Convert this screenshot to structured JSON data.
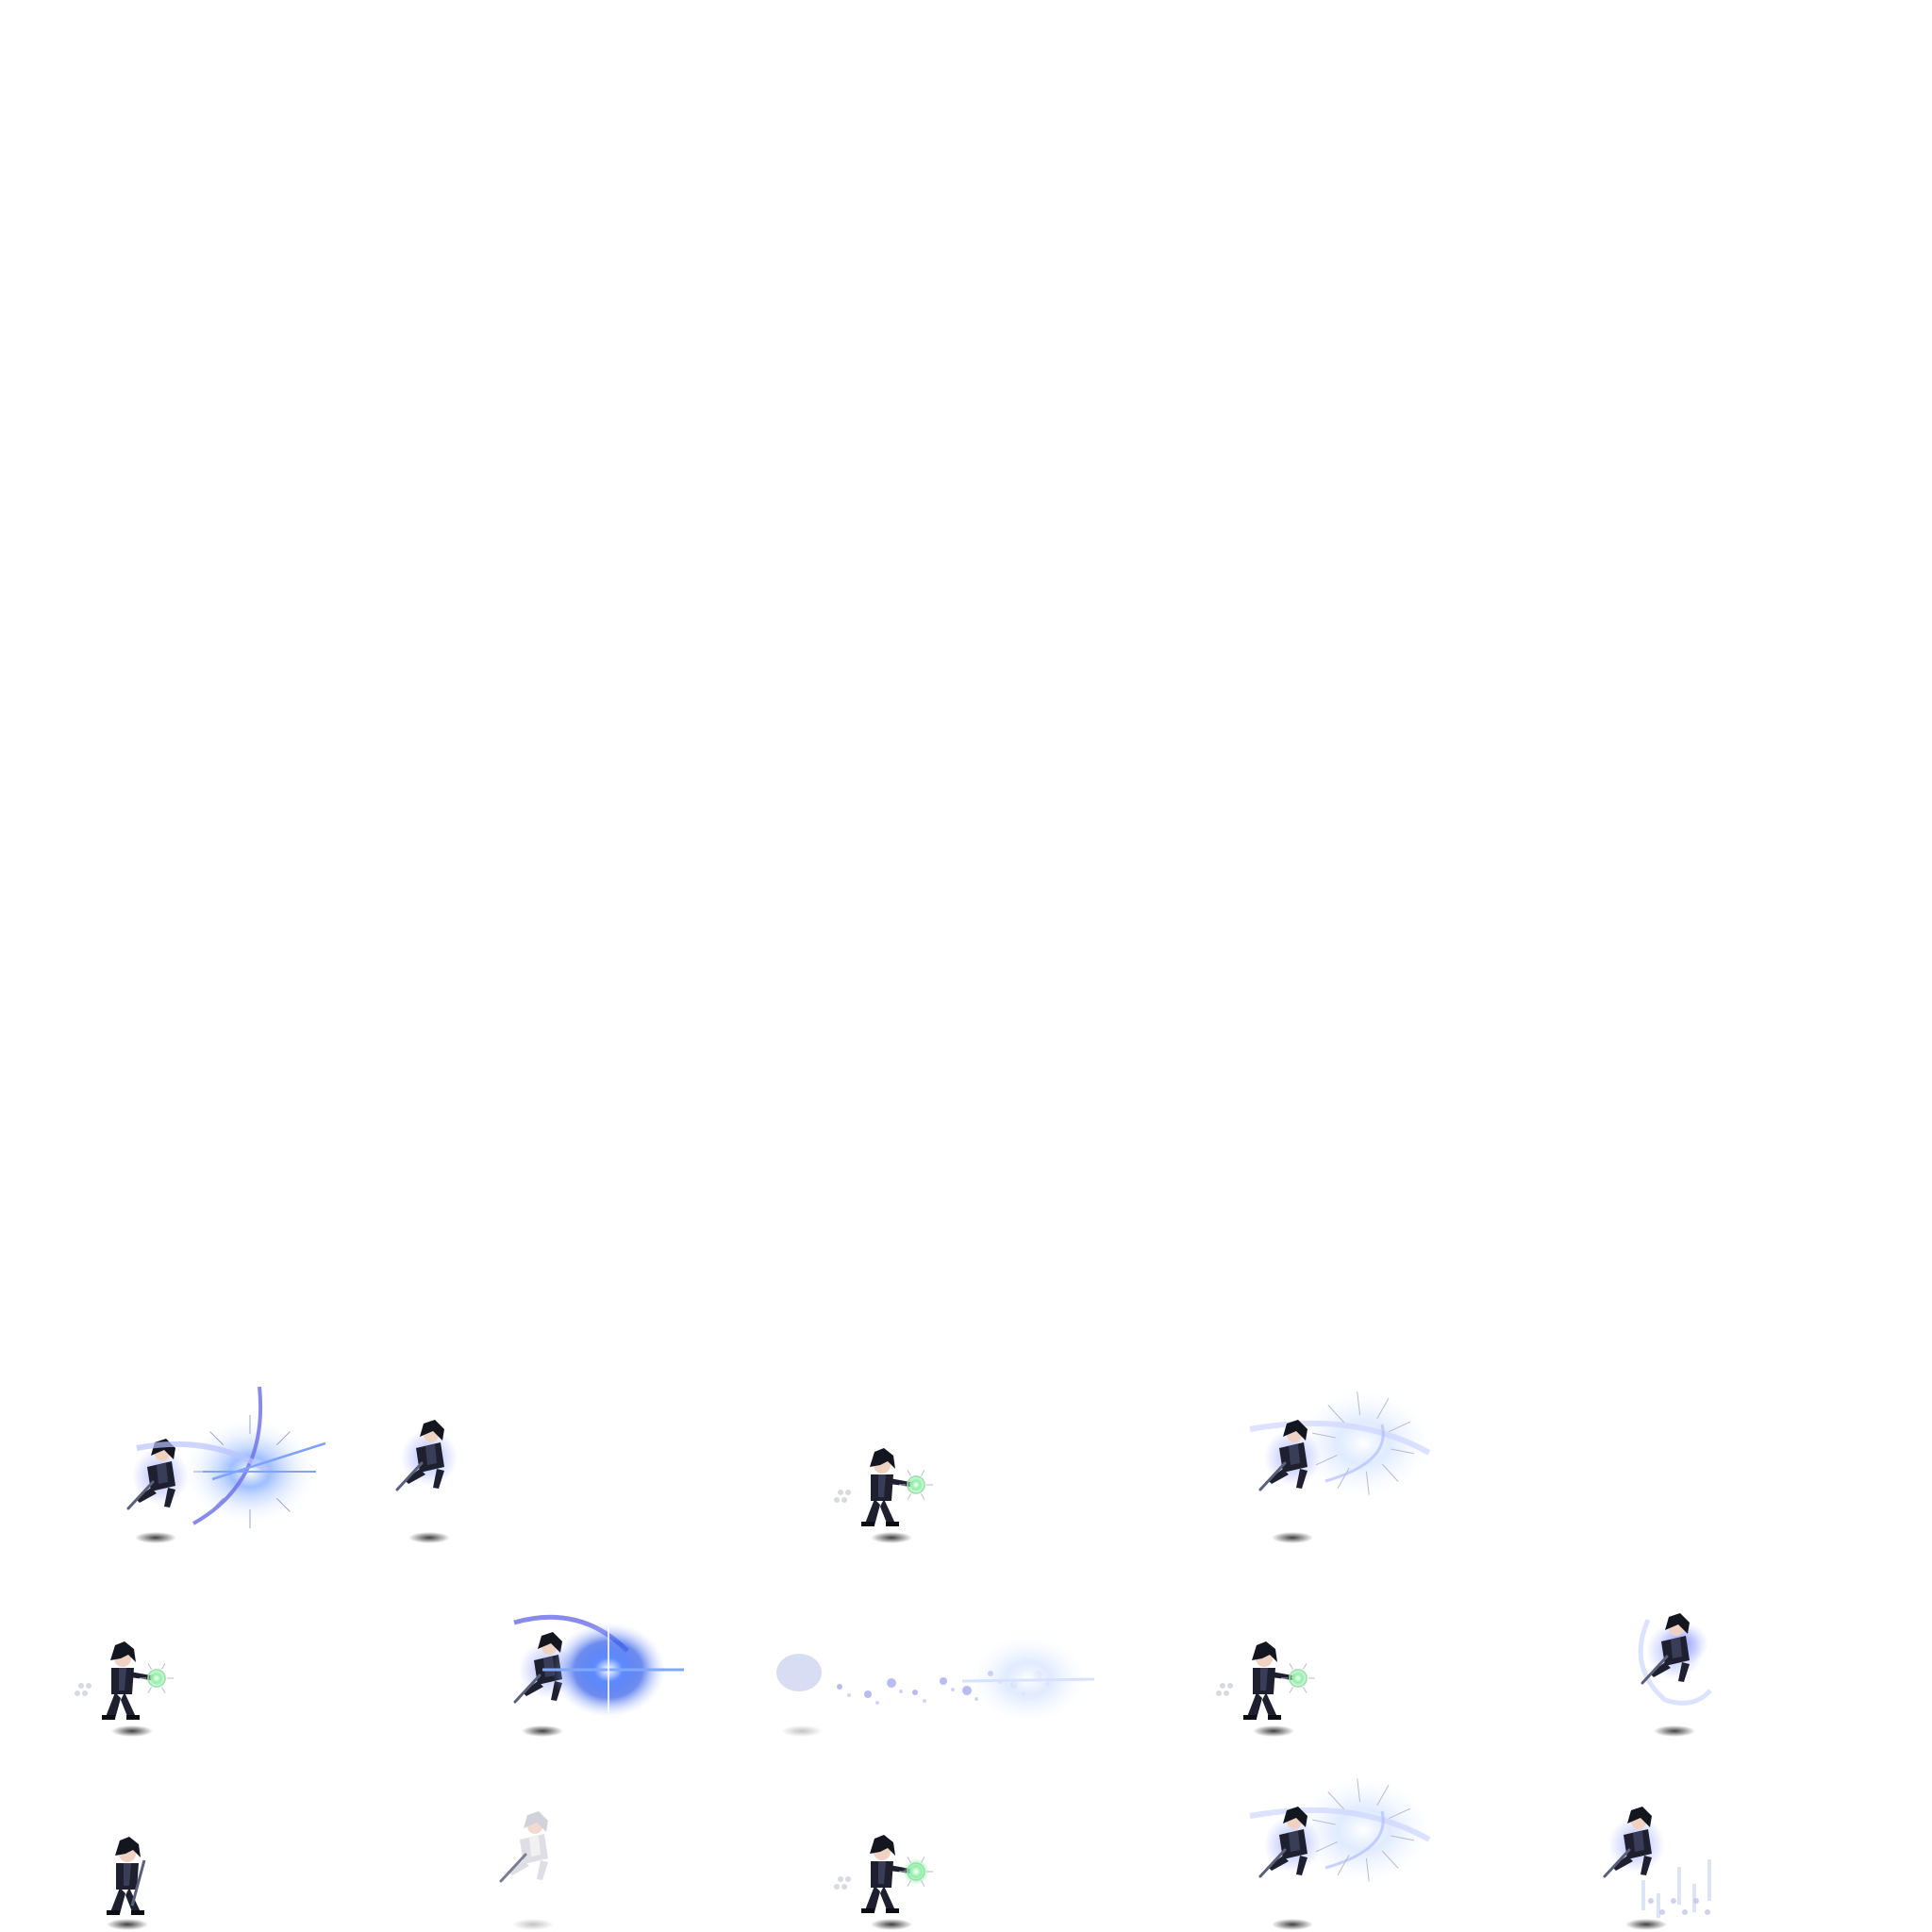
{
  "sheet": {
    "background": "#ffffff",
    "rows": 3,
    "frame_count": 14
  },
  "colors": {
    "outfit": "#1e2030",
    "outfit_shade": "#3a3d58",
    "skin": "#f0d2c2",
    "hair": "#14161f",
    "blade": "#5a5f7a",
    "glow": "#4f7cff",
    "glow_soft": "#cfe0ff",
    "slash": "#6a6ee8",
    "spark": "#6fe08a",
    "shadow": "#3a3a3a"
  },
  "frames": [
    {
      "id": "f1",
      "pose": "dash-slash",
      "effect": "burst-slash",
      "shadow": "dark"
    },
    {
      "id": "f2",
      "pose": "aerial-dive",
      "effect": "none",
      "shadow": "dark"
    },
    {
      "id": "f3",
      "pose": "cast",
      "effect": "green-spark",
      "shadow": "dark"
    },
    {
      "id": "f4",
      "pose": "aerial-slash",
      "effect": "soft-burst",
      "shadow": "dark"
    },
    {
      "id": "f5",
      "pose": "cast",
      "effect": "green-spark",
      "shadow": "dark"
    },
    {
      "id": "f6",
      "pose": "dash-slash",
      "effect": "blue-orb",
      "shadow": "dark"
    },
    {
      "id": "f7",
      "pose": "warp-dissolve",
      "effect": "particle-trail",
      "shadow": "faint"
    },
    {
      "id": "f8",
      "pose": "cast",
      "effect": "green-spark",
      "shadow": "dark"
    },
    {
      "id": "f9",
      "pose": "aerial-spin",
      "effect": "crescent",
      "shadow": "dark"
    },
    {
      "id": "f10",
      "pose": "idle-stand",
      "effect": "none",
      "shadow": "dark"
    },
    {
      "id": "f11",
      "pose": "ghost",
      "effect": "none",
      "shadow": "faint"
    },
    {
      "id": "f12",
      "pose": "cast",
      "effect": "green-spark-strong",
      "shadow": "dark"
    },
    {
      "id": "f13",
      "pose": "aerial-slash",
      "effect": "soft-burst",
      "shadow": "dark"
    },
    {
      "id": "f14",
      "pose": "aerial-drop",
      "effect": "ice-shards",
      "shadow": "dark"
    }
  ]
}
